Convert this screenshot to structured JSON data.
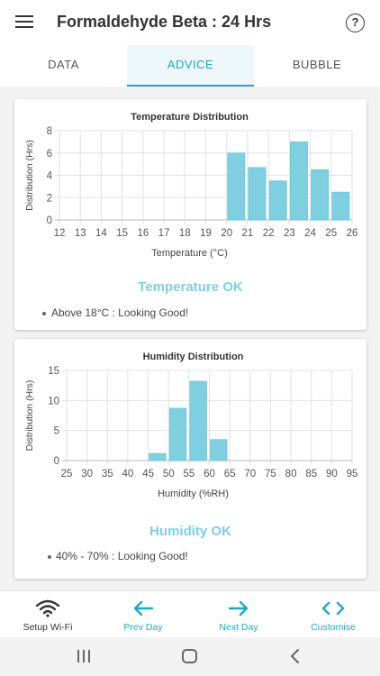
{
  "app": {
    "title": "Formaldehyde Beta : 24 Hrs",
    "menu_icon": "hamburger-menu-icon",
    "help_icon": "help-icon",
    "help_glyph": "?"
  },
  "tabs": [
    {
      "label": "DATA",
      "active": false
    },
    {
      "label": "ADVICE",
      "active": true
    },
    {
      "label": "BUBBLE",
      "active": false
    }
  ],
  "temperature": {
    "status": "Temperature OK",
    "advice": "Above 18°C : Looking Good!",
    "status_color": "#7dd0e2"
  },
  "humidity": {
    "status": "Humidity OK",
    "advice": "40% - 70% : Looking Good!",
    "status_color": "#7dd0e2"
  },
  "chart_data": [
    {
      "type": "bar",
      "title": "Temperature Distribution",
      "xlabel": "Temperature (°C)",
      "ylabel": "Distribution (Hrs)",
      "xlim": [
        12,
        26
      ],
      "ylim": [
        0,
        8
      ],
      "xticks": [
        12,
        13,
        14,
        15,
        16,
        17,
        18,
        19,
        20,
        21,
        22,
        23,
        24,
        25,
        26
      ],
      "yticks": [
        0,
        2,
        4,
        6,
        8
      ],
      "bin_width": 1,
      "x": [
        20,
        21,
        22,
        23,
        24,
        25
      ],
      "values": [
        6,
        4.7,
        3.5,
        7,
        4.5,
        2.5
      ],
      "bar_color": "#7fcfe1",
      "grid": true
    },
    {
      "type": "bar",
      "title": "Humidity Distribution",
      "xlabel": "Humidity (%RH)",
      "ylabel": "Distribution (Hrs)",
      "xlim": [
        25,
        95
      ],
      "ylim": [
        0,
        15
      ],
      "xticks": [
        25,
        30,
        35,
        40,
        45,
        50,
        55,
        60,
        65,
        70,
        75,
        80,
        85,
        90,
        95
      ],
      "yticks": [
        0,
        5,
        10,
        15
      ],
      "bin_width": 5,
      "x": [
        45,
        50,
        55,
        60
      ],
      "values": [
        1.2,
        8.7,
        13.2,
        3.5
      ],
      "bar_color": "#7fcfe1",
      "grid": true
    }
  ],
  "bottom_nav": [
    {
      "label": "Setup Wi-Fi",
      "icon": "wifi-icon",
      "color": "#333333"
    },
    {
      "label": "Prev Day",
      "icon": "arrow-left-icon",
      "color": "#1fa8c4"
    },
    {
      "label": "Next Day",
      "icon": "arrow-right-icon",
      "color": "#1fa8c4"
    },
    {
      "label": "Customise",
      "icon": "code-brackets-icon",
      "color": "#1fa8c4"
    }
  ],
  "system_nav": [
    {
      "icon": "recent-apps-icon"
    },
    {
      "icon": "home-icon"
    },
    {
      "icon": "back-icon"
    }
  ]
}
